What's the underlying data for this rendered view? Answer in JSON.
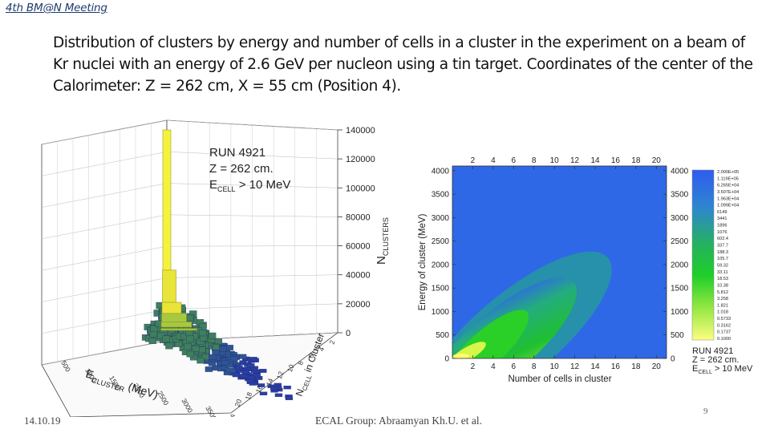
{
  "header": "4th BM@N Meeting",
  "description": "Distribution of clusters by energy and number of cells in a cluster in the experiment on a beam of Kr nuclei with an energy of 2.6 GeV per nucleon using a tin target. Coordinates of the center of the Calorimeter: Z = 262 cm, X = 55 cm (Position 4).",
  "footer": {
    "date": "14.10.19",
    "credit": "ECAL Group: Abraamyan Kh.U. et al.",
    "page": "9"
  },
  "colors": {
    "lego_peak": "#f2f03a",
    "lego_base": "#2a3fa0",
    "heat_background": "#2e68e6",
    "heat_core": "#22cc22",
    "heat_peak": "#fefe6a"
  },
  "chart_data": [
    {
      "type": "lego3d",
      "annotation": {
        "run": "RUN 4921",
        "z": "Z = 262 cm.",
        "ecell_main": "E",
        "ecell_sub": "CELL",
        "ecell_rest": " > 10 MeV"
      },
      "z_axis": {
        "label_main": "N",
        "label_sub": "CLUSTERS",
        "ticks": [
          "140000",
          "120000",
          "100000",
          "80000",
          "60000",
          "40000",
          "20000",
          "0"
        ],
        "range": [
          0,
          140000
        ]
      },
      "x_axis": {
        "label_main": "E",
        "label_sub": "CLUSTER",
        "label_rest": " (MeV)",
        "ticks": [
          "500",
          "1000",
          "1500",
          "2000",
          "2500",
          "3000",
          "3500",
          "4000"
        ]
      },
      "y_axis": {
        "label_main": "N",
        "label_sub": "CELL",
        "label_rest": " in Cluster",
        "ticks": [
          "2",
          "4",
          "6",
          "8",
          "10",
          "12",
          "14",
          "16",
          "18",
          "20"
        ]
      },
      "peak_profile": [
        {
          "ncell": 1,
          "value": 140000
        },
        {
          "ncell": 2,
          "value": 36000
        },
        {
          "ncell": 3,
          "value": 14000
        },
        {
          "ncell": 4,
          "value": 8000
        },
        {
          "ncell": 6,
          "value": 4000
        },
        {
          "ncell": 8,
          "value": 1500
        }
      ]
    },
    {
      "type": "heatmap",
      "xlabel": "Number of cells in cluster",
      "ylabel": "Energy of cluster (MeV)",
      "x_ticks": [
        "2",
        "4",
        "6",
        "8",
        "10",
        "12",
        "14",
        "16",
        "18",
        "20"
      ],
      "y_ticks": [
        "0",
        "500",
        "1000",
        "1500",
        "2000",
        "2500",
        "3000",
        "3500",
        "4000"
      ],
      "xlim": [
        0,
        21
      ],
      "ylim": [
        0,
        4100
      ],
      "right_y_ticks": [
        "0",
        "500",
        "1000",
        "1500",
        "2000",
        "2500",
        "3000",
        "3500",
        "4000"
      ],
      "color_scale": [
        "0.1000",
        "0.1737",
        "0.3162",
        "0.5733",
        "1.018",
        "1.821",
        "3.258",
        "5.812",
        "10.38",
        "18.53",
        "33.11",
        "59.32",
        "105.7",
        "188.3",
        "337.7",
        "602.4",
        "1076",
        "1896",
        "3441",
        "6149",
        "1.099E+04",
        "1.963E+04",
        "3.507E+04",
        "6.265E+04",
        "1.119E+05",
        "2.000E+05"
      ],
      "annotation": {
        "run": "RUN 4921",
        "z": "Z = 262 cm.",
        "ecell_main": "E",
        "ecell_sub": "CELL",
        "ecell_rest": " > 10 MeV"
      }
    }
  ]
}
